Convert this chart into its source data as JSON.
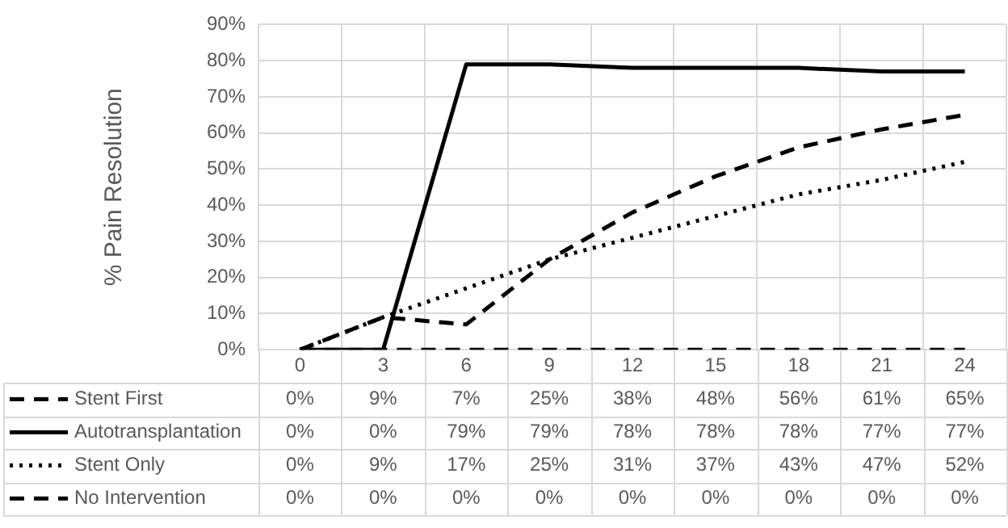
{
  "chart_data": {
    "type": "line",
    "ylabel": "% Pain Resolution",
    "categories": [
      "0",
      "3",
      "6",
      "9",
      "12",
      "15",
      "18",
      "21",
      "24"
    ],
    "ylim": [
      0,
      90
    ],
    "yticks": [
      {
        "value": 0,
        "label": "0%"
      },
      {
        "value": 10,
        "label": "10%"
      },
      {
        "value": 20,
        "label": "20%"
      },
      {
        "value": 30,
        "label": "30%"
      },
      {
        "value": 40,
        "label": "40%"
      },
      {
        "value": 50,
        "label": "50%"
      },
      {
        "value": 60,
        "label": "60%"
      },
      {
        "value": 70,
        "label": "70%"
      },
      {
        "value": 80,
        "label": "80%"
      },
      {
        "value": 90,
        "label": "90%"
      }
    ],
    "grid": true,
    "legend": "bottom",
    "marker": "none",
    "series": [
      {
        "name": "Stent First",
        "color": "#000000",
        "line_style": "dashed",
        "values": [
          0,
          9,
          7,
          25,
          38,
          48,
          56,
          61,
          65
        ],
        "value_labels": [
          "0%",
          "9%",
          "7%",
          "25%",
          "38%",
          "48%",
          "56%",
          "61%",
          "65%"
        ]
      },
      {
        "name": "Autotransplantation",
        "color": "#000000",
        "line_style": "solid",
        "values": [
          0,
          0,
          79,
          79,
          78,
          78,
          78,
          77,
          77
        ],
        "value_labels": [
          "0%",
          "0%",
          "79%",
          "79%",
          "78%",
          "78%",
          "78%",
          "77%",
          "77%"
        ]
      },
      {
        "name": "Stent Only",
        "color": "#000000",
        "line_style": "dotted",
        "values": [
          0,
          9,
          17,
          25,
          31,
          37,
          43,
          47,
          52
        ],
        "value_labels": [
          "0%",
          "9%",
          "17%",
          "25%",
          "31%",
          "37%",
          "43%",
          "47%",
          "52%"
        ]
      },
      {
        "name": "No Intervention",
        "color": "#000000",
        "line_style": "dashed",
        "values": [
          0,
          0,
          0,
          0,
          0,
          0,
          0,
          0,
          0
        ],
        "value_labels": [
          "0%",
          "0%",
          "0%",
          "0%",
          "0%",
          "0%",
          "0%",
          "0%",
          "0%"
        ]
      }
    ]
  }
}
